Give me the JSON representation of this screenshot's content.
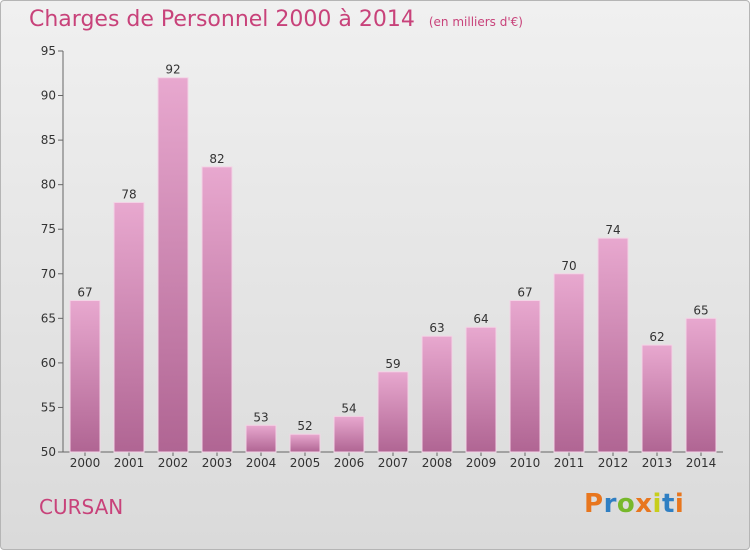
{
  "header": {
    "title": "Charges de Personnel 2000 à 2014",
    "subtitle": "(en milliers d'€)"
  },
  "footer": {
    "commune": "CURSAN",
    "logo_text": "Proxiti"
  },
  "colors": {
    "title": "#c8427a",
    "bar_top": "#e8a8cf",
    "bar_bottom": "#b06593",
    "logo_letters": [
      "#e8761e",
      "#2f7fc3",
      "#77b82b",
      "#e8761e",
      "#c7ce1b",
      "#2f7fc3",
      "#e8761e"
    ]
  },
  "chart_data": {
    "type": "bar",
    "title": "Charges de Personnel 2000 à 2014",
    "subtitle": "(en milliers d'€)",
    "categories": [
      "2000",
      "2001",
      "2002",
      "2003",
      "2004",
      "2005",
      "2006",
      "2007",
      "2008",
      "2009",
      "2010",
      "2011",
      "2012",
      "2013",
      "2014"
    ],
    "values": [
      67,
      78,
      92,
      82,
      53,
      52,
      54,
      59,
      63,
      64,
      67,
      70,
      74,
      62,
      65
    ],
    "ylim": [
      50,
      95
    ],
    "yticks": [
      50,
      55,
      60,
      65,
      70,
      75,
      80,
      85,
      90,
      95
    ],
    "grid": false,
    "data_labels": true
  }
}
